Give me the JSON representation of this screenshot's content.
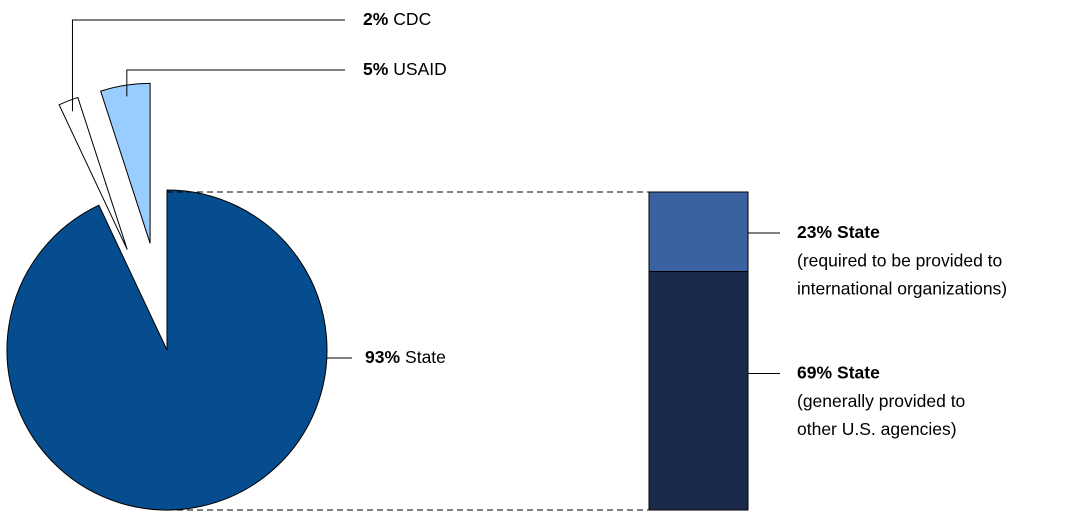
{
  "chart_data": [
    {
      "type": "pie",
      "categories": [
        "State",
        "CDC",
        "USAID"
      ],
      "values": [
        93,
        2,
        5
      ],
      "value_labels": [
        "93%",
        "2%",
        "5%"
      ],
      "colors": [
        "#054d8f",
        "#ffffff",
        "#99ccff"
      ]
    },
    {
      "type": "bar",
      "series": [
        {
          "name": "State",
          "color": "#3a62a0",
          "values": [
            23
          ],
          "value_labels": [
            "23%"
          ],
          "description": [
            "(required to be provided to",
            "international organizations)"
          ]
        },
        {
          "name": "State",
          "color": "#1b2a4a",
          "values": [
            69
          ],
          "value_labels": [
            "69%"
          ],
          "description": [
            "(generally provided to",
            "other U.S. agencies)"
          ]
        }
      ]
    }
  ]
}
